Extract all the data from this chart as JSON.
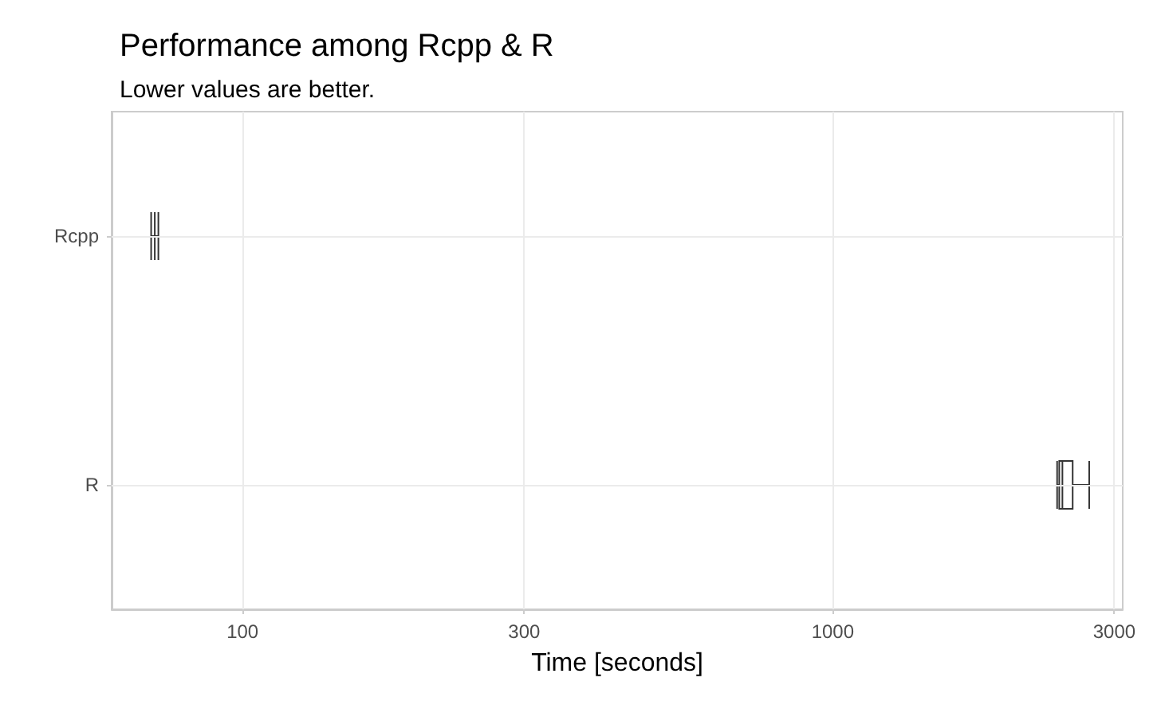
{
  "chart_data": {
    "type": "box",
    "title": "Performance among Rcpp & R",
    "subtitle": "Lower values are better.",
    "xlabel": "Time [seconds]",
    "orientation": "horizontal",
    "categories": [
      "Rcpp",
      "R"
    ],
    "boxes": [
      {
        "low": 70,
        "q1": 71,
        "median": 71,
        "q3": 71,
        "high": 72
      },
      {
        "low": 2400,
        "q1": 2420,
        "median": 2450,
        "q3": 2550,
        "high": 2720
      }
    ],
    "color": "#333333",
    "log": "x",
    "xlim": [
      60,
      3100
    ],
    "xticks": [
      100,
      300,
      1000,
      3000
    ],
    "grid": true
  }
}
